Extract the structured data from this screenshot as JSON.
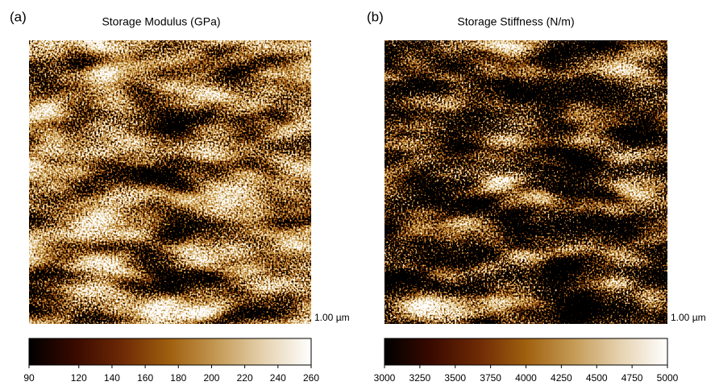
{
  "chart_data": [
    {
      "type": "image",
      "panel_label": "(a)",
      "title": "Storage Modulus (GPa)",
      "scale_label": "1.00 µm",
      "colormap": [
        "#000000",
        "#3a0a00",
        "#6e2a05",
        "#a0600f",
        "#c49a55",
        "#e6d2b0",
        "#ffffff"
      ],
      "clim": [
        90,
        260
      ],
      "cticks": [
        90,
        120,
        140,
        160,
        180,
        200,
        220,
        240,
        260
      ]
    },
    {
      "type": "image",
      "panel_label": "(b)",
      "title": "Storage Stiffness (N/m)",
      "scale_label": "1.00 µm",
      "colormap": [
        "#000000",
        "#3a0a00",
        "#6e2a05",
        "#a0600f",
        "#c49a55",
        "#e6d2b0",
        "#ffffff"
      ],
      "clim": [
        3000,
        5000
      ],
      "cticks": [
        3000,
        3250,
        3500,
        3750,
        4000,
        4250,
        4500,
        4750,
        5000
      ]
    }
  ]
}
